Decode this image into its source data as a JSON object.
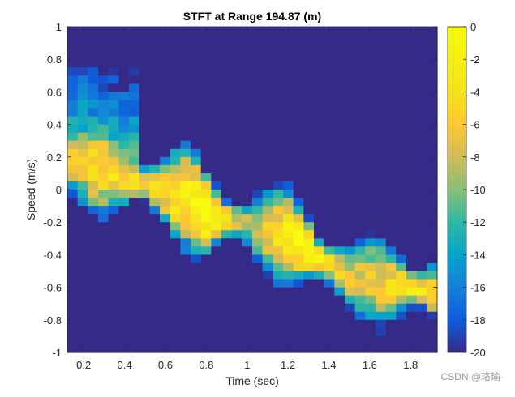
{
  "chart_data": {
    "type": "heatmap",
    "title": "STFT at Range 194.87 (m)",
    "xlabel": "Time (sec)",
    "ylabel": "Speed (m/s)",
    "xlim": [
      0.12,
      1.93
    ],
    "ylim": [
      -1,
      1
    ],
    "x_ticks": [
      0.2,
      0.4,
      0.6,
      0.8,
      1,
      1.2,
      1.4,
      1.6,
      1.8
    ],
    "x_tick_labels": [
      "0.2",
      "0.4",
      "0.6",
      "0.8",
      "1",
      "1.2",
      "1.4",
      "1.6",
      "1.8"
    ],
    "y_ticks": [
      1,
      0.8,
      0.6,
      0.4,
      0.2,
      0,
      -0.2,
      -0.4,
      -0.6,
      -0.8,
      -1
    ],
    "y_tick_labels": [
      "1",
      "0.8",
      "0.6",
      "0.4",
      "0.2",
      "0",
      "-0.2",
      "-0.4",
      "-0.6",
      "-0.8",
      "-1"
    ],
    "colorbar": {
      "range": [
        -20,
        0
      ],
      "colormap": "parula",
      "ticks": [
        0,
        -2,
        -4,
        -6,
        -8,
        -10,
        -12,
        -14,
        -16,
        -18,
        -20
      ],
      "tick_labels": [
        "0",
        "-2",
        "-4",
        "-6",
        "-8",
        "-10",
        "-12",
        "-14",
        "-16",
        "-18",
        "-20"
      ]
    },
    "grid": false,
    "ridge_description_points": [
      {
        "t": 0.15,
        "v": 0.18,
        "db": -6
      },
      {
        "t": 0.35,
        "v": 0.1,
        "db": -4
      },
      {
        "t": 0.55,
        "v": 0.02,
        "db": -5
      },
      {
        "t": 0.7,
        "v": -0.05,
        "db": -2
      },
      {
        "t": 0.8,
        "v": -0.15,
        "db": 0
      },
      {
        "t": 1.0,
        "v": -0.22,
        "db": -8
      },
      {
        "t": 1.25,
        "v": -0.32,
        "db": -1
      },
      {
        "t": 1.38,
        "v": -0.45,
        "db": -3
      },
      {
        "t": 1.55,
        "v": -0.55,
        "db": -8
      },
      {
        "t": 1.8,
        "v": -0.6,
        "db": -3
      },
      {
        "t": 1.9,
        "v": -0.62,
        "db": -4
      }
    ]
  },
  "watermark": "CSDN @珞瑜·"
}
